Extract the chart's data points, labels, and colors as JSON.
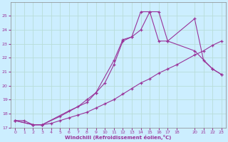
{
  "xlabel": "Windchill (Refroidissement éolien,°C)",
  "bg_color": "#cceeff",
  "grid_color": "#b8ddd8",
  "line_color": "#993399",
  "xlim": [
    -0.5,
    23.5
  ],
  "ylim": [
    17,
    26
  ],
  "xticks": [
    0,
    1,
    2,
    3,
    4,
    5,
    6,
    7,
    8,
    9,
    10,
    11,
    12,
    13,
    14,
    15,
    16,
    17,
    18,
    20,
    21,
    22,
    23
  ],
  "yticks": [
    17,
    18,
    19,
    20,
    21,
    22,
    23,
    24,
    25
  ],
  "series": [
    {
      "x": [
        0,
        1,
        2,
        3,
        4,
        5,
        6,
        7,
        8,
        9,
        10,
        11,
        12,
        13,
        14,
        15,
        16,
        17,
        18,
        20,
        21,
        22,
        23
      ],
      "y": [
        17.5,
        17.5,
        17.2,
        17.2,
        17.3,
        17.5,
        17.7,
        17.9,
        18.1,
        18.4,
        18.7,
        19.0,
        19.4,
        19.8,
        20.2,
        20.5,
        20.9,
        21.2,
        21.5,
        22.2,
        22.5,
        22.9,
        23.2
      ]
    },
    {
      "x": [
        0,
        2,
        3,
        6,
        8,
        9,
        11,
        12,
        13,
        14,
        15,
        16,
        17,
        20,
        22,
        23
      ],
      "y": [
        17.5,
        17.2,
        17.2,
        18.2,
        18.8,
        19.5,
        21.8,
        23.3,
        23.5,
        25.3,
        25.3,
        23.2,
        23.2,
        22.5,
        21.2,
        20.8
      ]
    },
    {
      "x": [
        0,
        2,
        3,
        5,
        7,
        8,
        9,
        10,
        11,
        12,
        13,
        14,
        15,
        16,
        17,
        20,
        21,
        22,
        23
      ],
      "y": [
        17.5,
        17.2,
        17.2,
        17.8,
        18.5,
        19.0,
        19.5,
        20.2,
        21.5,
        23.2,
        23.5,
        24.0,
        25.3,
        25.3,
        23.2,
        24.8,
        21.8,
        21.2,
        20.8
      ]
    }
  ]
}
